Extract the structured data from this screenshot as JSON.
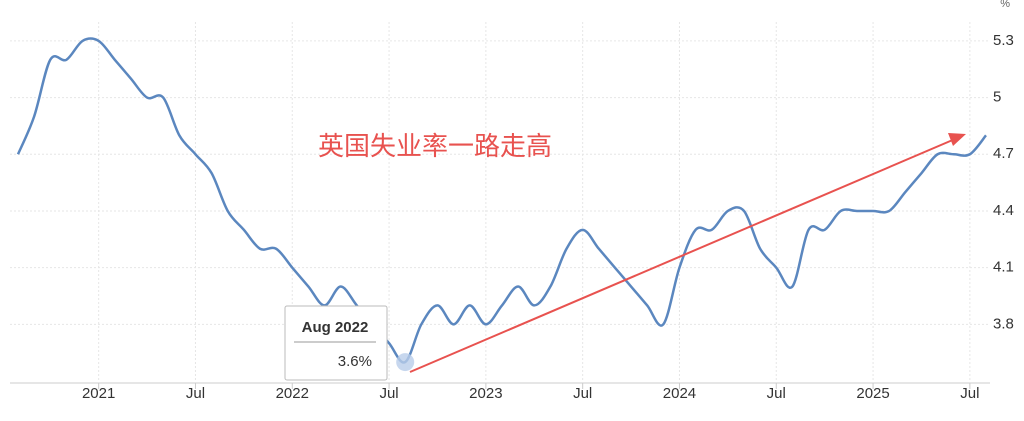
{
  "chart_data": {
    "type": "line",
    "annotation": "英国失业率一路走高",
    "y_unit": "%",
    "tooltip": {
      "title": "Aug 2022",
      "value": "3.6%"
    },
    "x": [
      "2020-08",
      "2020-09",
      "2020-10",
      "2020-11",
      "2020-12",
      "2021-01",
      "2021-02",
      "2021-03",
      "2021-04",
      "2021-05",
      "2021-06",
      "2021-07",
      "2021-08",
      "2021-09",
      "2021-10",
      "2021-11",
      "2021-12",
      "2022-01",
      "2022-02",
      "2022-03",
      "2022-04",
      "2022-05",
      "2022-06",
      "2022-07",
      "2022-08",
      "2022-09",
      "2022-10",
      "2022-11",
      "2022-12",
      "2023-01",
      "2023-02",
      "2023-03",
      "2023-04",
      "2023-05",
      "2023-06",
      "2023-07",
      "2023-08",
      "2023-09",
      "2023-10",
      "2023-11",
      "2023-12",
      "2024-01",
      "2024-02",
      "2024-03",
      "2024-04",
      "2024-05",
      "2024-06",
      "2024-07",
      "2024-08",
      "2024-09",
      "2024-10",
      "2024-11",
      "2024-12",
      "2025-01",
      "2025-02",
      "2025-03",
      "2025-04",
      "2025-05",
      "2025-06",
      "2025-07",
      "2025-08"
    ],
    "series": [
      {
        "color": "#5b87bf",
        "values": [
          4.7,
          4.9,
          5.2,
          5.2,
          5.3,
          5.3,
          5.2,
          5.1,
          5.0,
          5.0,
          4.8,
          4.7,
          4.6,
          4.4,
          4.3,
          4.2,
          4.2,
          4.1,
          4.0,
          3.9,
          4.0,
          3.9,
          3.8,
          3.7,
          3.6,
          3.8,
          3.9,
          3.8,
          3.9,
          3.8,
          3.9,
          4.0,
          3.9,
          4.0,
          4.2,
          4.3,
          4.2,
          4.1,
          4.0,
          3.9,
          3.8,
          4.1,
          4.3,
          4.3,
          4.4,
          4.4,
          4.2,
          4.1,
          4.0,
          4.3,
          4.3,
          4.4,
          4.4,
          4.4,
          4.4,
          4.5,
          4.6,
          4.7,
          4.7,
          4.7,
          4.8
        ]
      }
    ],
    "xlim": [
      "2020-08",
      "2025-08"
    ],
    "xticks": [
      {
        "value": "2021-01",
        "label": "2021"
      },
      {
        "value": "2021-07",
        "label": "Jul"
      },
      {
        "value": "2022-01",
        "label": "2022"
      },
      {
        "value": "2022-07",
        "label": "Jul"
      },
      {
        "value": "2023-01",
        "label": "2023"
      },
      {
        "value": "2023-07",
        "label": "Jul"
      },
      {
        "value": "2024-01",
        "label": "2024"
      },
      {
        "value": "2024-07",
        "label": "Jul"
      },
      {
        "value": "2025-01",
        "label": "2025"
      },
      {
        "value": "2025-07",
        "label": "Jul"
      }
    ],
    "ylim": [
      3.5,
      5.4
    ],
    "yticks": [
      3.8,
      4.1,
      4.4,
      4.7,
      5.0,
      5.3
    ],
    "grid": true
  }
}
